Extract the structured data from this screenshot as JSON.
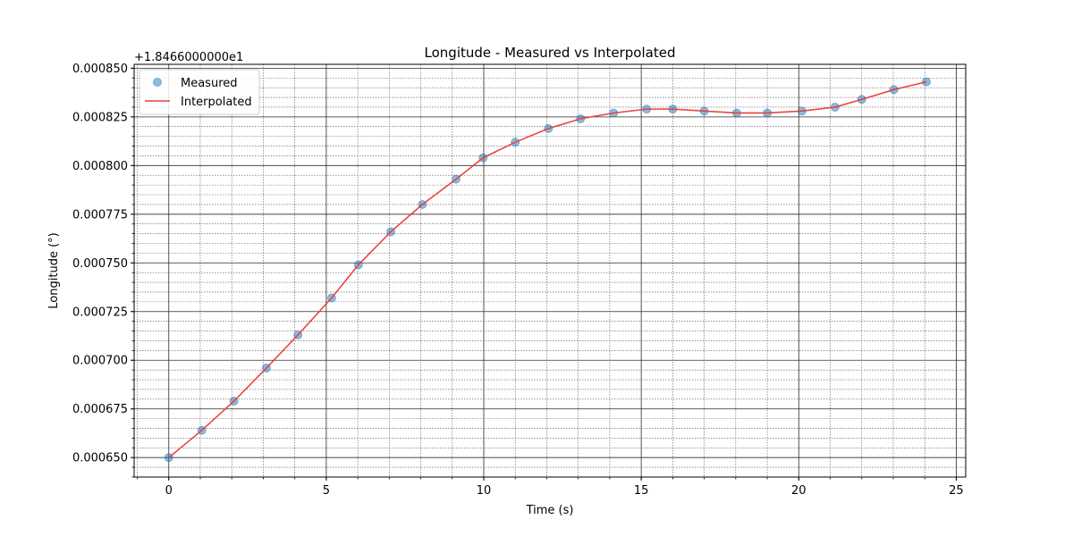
{
  "chart_data": {
    "type": "line",
    "title": "Longitude - Measured vs Interpolated",
    "xlabel": "Time (s)",
    "ylabel": "Longitude (°)",
    "offset_label": "+1.8466000000e1",
    "xlim": [
      -1.1,
      25.3
    ],
    "ylim": [
      0.00064,
      0.000852
    ],
    "x_ticks": [
      0,
      5,
      10,
      15,
      20,
      25
    ],
    "y_ticks": [
      0.00065,
      0.000675,
      0.0007,
      0.000725,
      0.00075,
      0.000775,
      0.0008,
      0.000825,
      0.00085
    ],
    "y_tick_labels": [
      "0.000650",
      "0.000675",
      "0.000700",
      "0.000725",
      "0.000750",
      "0.000775",
      "0.000800",
      "0.000825",
      "0.000850"
    ],
    "grid": true,
    "minor_grid": true,
    "legend_position": "top-left",
    "series": [
      {
        "name": "Measured",
        "kind": "scatter",
        "color": "#1f77b4",
        "x": [
          0,
          1.05,
          2.07,
          3.1,
          4.1,
          5.17,
          6.02,
          7.05,
          8.05,
          9.12,
          9.98,
          11.0,
          12.05,
          13.07,
          14.12,
          15.17,
          16.0,
          17.0,
          18.03,
          19.0,
          20.1,
          21.15,
          22.0,
          23.02,
          24.05
        ],
        "y": [
          0.00065,
          0.000664,
          0.000679,
          0.000696,
          0.000713,
          0.000732,
          0.000749,
          0.000766,
          0.00078,
          0.000793,
          0.000804,
          0.000812,
          0.000819,
          0.000824,
          0.000827,
          0.000829,
          0.000829,
          0.000828,
          0.000827,
          0.000827,
          0.000828,
          0.00083,
          0.000834,
          0.000839,
          0.000843
        ]
      },
      {
        "name": "Interpolated",
        "kind": "line",
        "color": "#e83b3b",
        "x": [
          0,
          1.05,
          2.07,
          3.1,
          4.1,
          5.17,
          6.02,
          7.05,
          8.05,
          9.12,
          9.98,
          11.0,
          12.05,
          13.07,
          14.12,
          15.17,
          16.0,
          17.0,
          18.03,
          19.0,
          20.1,
          21.15,
          22.0,
          23.02,
          24.05
        ],
        "y": [
          0.00065,
          0.000664,
          0.000679,
          0.000696,
          0.000713,
          0.000732,
          0.000749,
          0.000766,
          0.00078,
          0.000793,
          0.000804,
          0.000812,
          0.000819,
          0.000824,
          0.000827,
          0.000829,
          0.000829,
          0.000828,
          0.000827,
          0.000827,
          0.000828,
          0.00083,
          0.000834,
          0.000839,
          0.000843
        ]
      }
    ]
  }
}
